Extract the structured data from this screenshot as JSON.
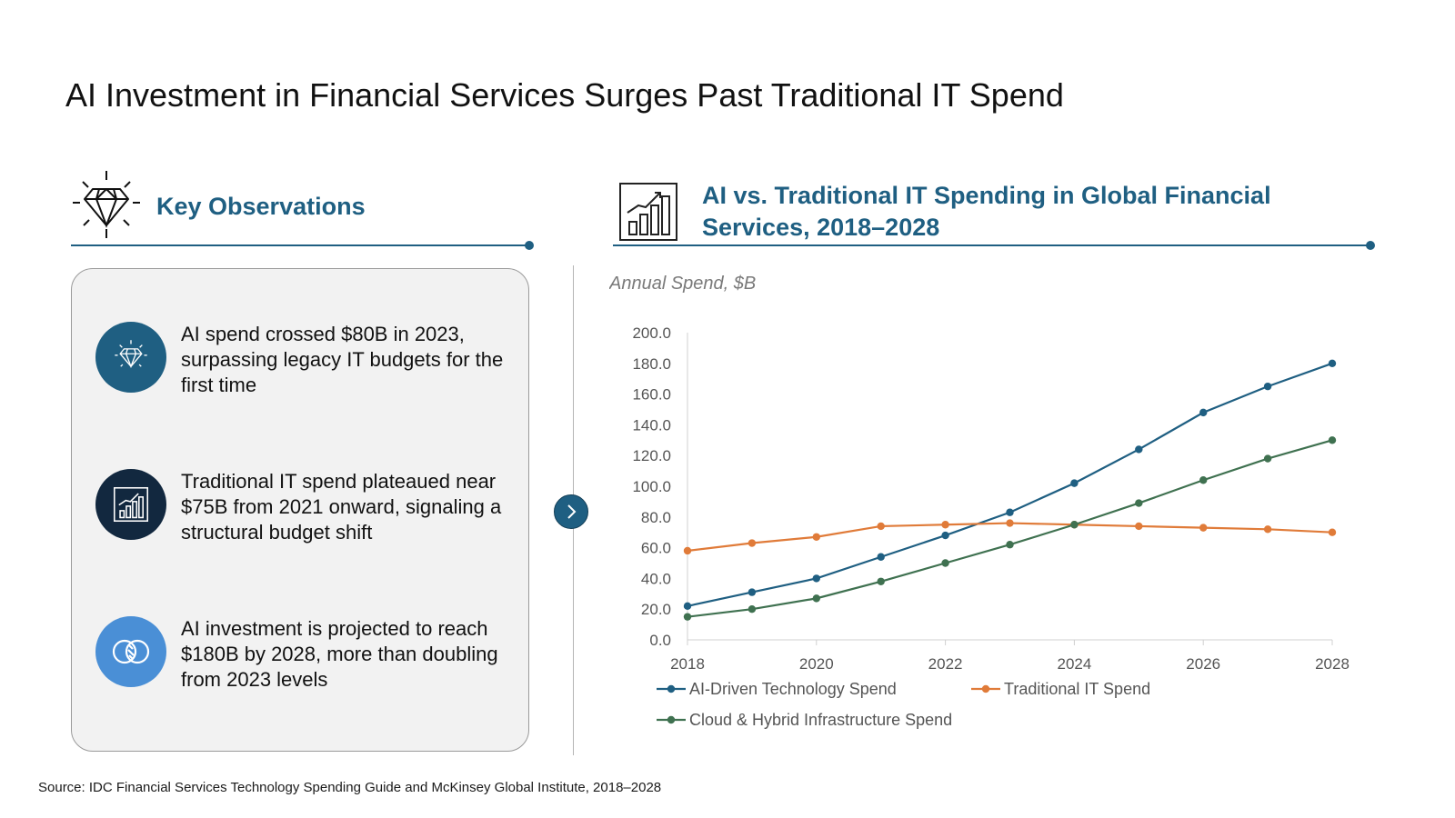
{
  "title": "AI Investment in Financial Services Surges Past Traditional IT Spend",
  "left_section": {
    "heading": "Key Observations",
    "icon": "diamond-icon",
    "observations": [
      {
        "icon": "diamond-icon",
        "color": "#1f5f82",
        "text": "AI spend crossed $80B in 2023, surpassing legacy IT budgets for the first time"
      },
      {
        "icon": "bar-chart-icon",
        "color": "#12283f",
        "text": "Traditional IT spend plateaued near $75B from 2021 onward, signaling a structural budget shift"
      },
      {
        "icon": "overlapping-circles-icon",
        "color": "#4a8fd6",
        "text": "AI investment is projected to reach $180B by 2028, more than doubling from 2023 levels"
      }
    ]
  },
  "right_section": {
    "heading": "AI vs. Traditional IT Spending in Global Financial Services, 2018–2028",
    "icon": "growth-chart-icon"
  },
  "nav": {
    "next_icon": "chevron-right-icon"
  },
  "colors": {
    "accent": "#1f5f82",
    "ai": "#1f5f82",
    "traditional": "#e07b39",
    "cloud": "#3f7150"
  },
  "chart_data": {
    "type": "line",
    "ylabel": "Annual Spend, $B",
    "xlabel": "",
    "x": [
      2018,
      2019,
      2020,
      2021,
      2022,
      2023,
      2024,
      2025,
      2026,
      2027,
      2028
    ],
    "x_ticks": [
      "2018",
      "2020",
      "2022",
      "2024",
      "2026",
      "2028"
    ],
    "y_ticks": [
      "0.0",
      "20.0",
      "40.0",
      "60.0",
      "80.0",
      "100.0",
      "120.0",
      "140.0",
      "160.0",
      "180.0",
      "200.0"
    ],
    "ylim": [
      0,
      200
    ],
    "xlim": [
      2018,
      2028
    ],
    "grid": false,
    "legend_position": "bottom",
    "series": [
      {
        "name": "AI-Driven Technology Spend",
        "color": "#1f5f82",
        "values": [
          22,
          31,
          40,
          54,
          68,
          83,
          102,
          124,
          148,
          165,
          180
        ]
      },
      {
        "name": "Traditional IT Spend",
        "color": "#e07b39",
        "values": [
          58,
          63,
          67,
          74,
          75,
          76,
          75,
          74,
          73,
          72,
          70
        ]
      },
      {
        "name": "Cloud & Hybrid Infrastructure Spend",
        "color": "#3f7150",
        "values": [
          15,
          20,
          27,
          38,
          50,
          62,
          75,
          89,
          104,
          118,
          130
        ]
      }
    ]
  },
  "source": "Source: IDC Financial Services Technology Spending Guide and McKinsey Global Institute, 2018–2028"
}
